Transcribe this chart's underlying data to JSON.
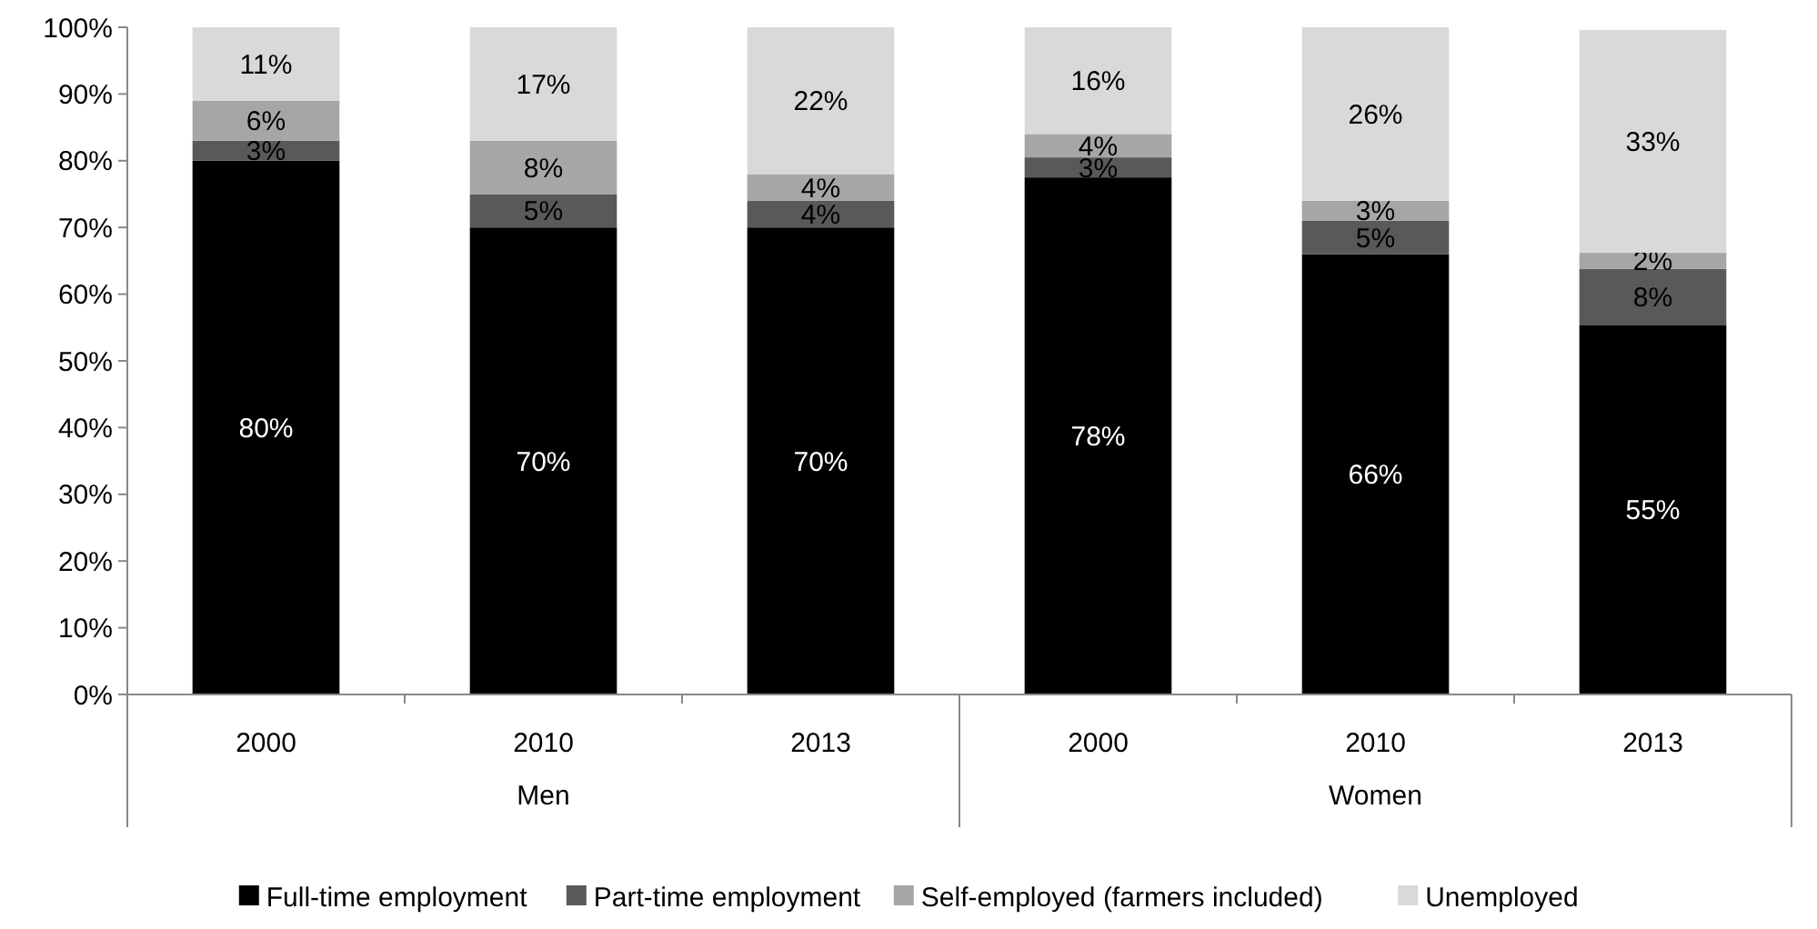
{
  "chart_data": {
    "type": "bar",
    "stacked": true,
    "categories": [
      "2000",
      "2010",
      "2013",
      "2000",
      "2010",
      "2013"
    ],
    "annotations": [
      "Men",
      "Women"
    ],
    "series": [
      {
        "name": "Full-time employment",
        "color": "#000000",
        "values": [
          80,
          70,
          70,
          77.5,
          66,
          55.4
        ],
        "value_labels": [
          "80%",
          "70%",
          "70%",
          "78%",
          "66%",
          "55%"
        ]
      },
      {
        "name": "Part-time employment",
        "color": "#595959",
        "values": [
          3,
          5,
          4,
          3,
          5,
          8.4
        ],
        "value_labels": [
          "3%",
          "5%",
          "4%",
          "3%",
          "5%",
          "8%"
        ]
      },
      {
        "name": "Self-employed (farmers included)",
        "color": "#a6a6a6",
        "values": [
          6,
          8,
          4,
          3.5,
          3,
          2.4
        ],
        "value_labels": [
          "6%",
          "8%",
          "4%",
          "4%",
          "3%",
          "2%"
        ]
      },
      {
        "name": "Unemployed",
        "color": "#d9d9d9",
        "values": [
          11,
          17,
          22,
          16,
          26,
          33.4
        ],
        "value_labels": [
          "11%",
          "17%",
          "22%",
          "16%",
          "26%",
          "33%"
        ]
      }
    ],
    "ylim": [
      0,
      100
    ],
    "yticks": [
      {
        "value": 0,
        "label": "0%"
      },
      {
        "value": 10,
        "label": "10%"
      },
      {
        "value": 20,
        "label": "20%"
      },
      {
        "value": 30,
        "label": "30%"
      },
      {
        "value": 40,
        "label": "40%"
      },
      {
        "value": 50,
        "label": "50%"
      },
      {
        "value": 60,
        "label": "60%"
      },
      {
        "value": 70,
        "label": "70%"
      },
      {
        "value": 80,
        "label": "80%"
      },
      {
        "value": 90,
        "label": "90%"
      },
      {
        "value": 100,
        "label": "100%"
      }
    ],
    "legend": "bottom"
  }
}
